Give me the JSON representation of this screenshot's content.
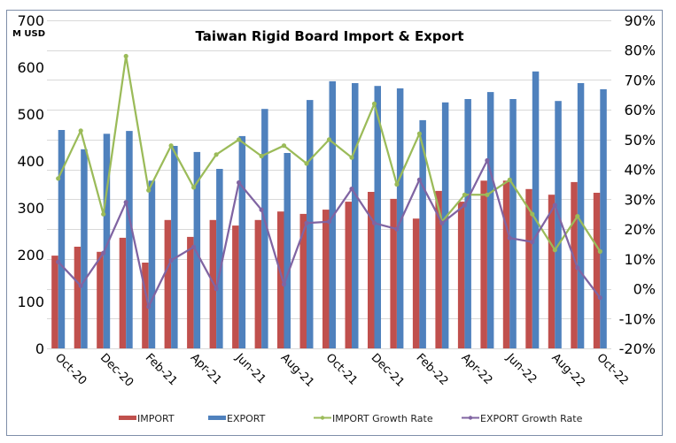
{
  "chart_data": {
    "type": "bar+line",
    "title": "Taiwan Rigid Board Import & Export",
    "ylabel_left": "M USD",
    "ylabel_right": "",
    "xlabel": "",
    "ylim_left": [
      0,
      700
    ],
    "ylim_right": [
      -0.2,
      0.9
    ],
    "yticks_left": [
      "0",
      "100",
      "200",
      "300",
      "400",
      "500",
      "600",
      "700"
    ],
    "yticks_right": [
      "-20%",
      "-10%",
      "0%",
      "10%",
      "20%",
      "30%",
      "40%",
      "50%",
      "60%",
      "70%",
      "80%",
      "90%"
    ],
    "grid": true,
    "legend_position": "bottom",
    "categories": [
      "Oct-20",
      "Nov-20",
      "Dec-20",
      "Jan-21",
      "Feb-21",
      "Mar-21",
      "Apr-21",
      "May-21",
      "Jun-21",
      "Jul-21",
      "Aug-21",
      "Sep-21",
      "Oct-21",
      "Nov-21",
      "Dec-21",
      "Jan-22",
      "Feb-22",
      "Mar-22",
      "Apr-22",
      "May-22",
      "Jun-22",
      "Jul-22",
      "Aug-22",
      "Sep-22",
      "Oct-22"
    ],
    "xtick_labels": [
      "Oct-20",
      "Dec-20",
      "Feb-21",
      "Apr-21",
      "Jun-21",
      "Aug-21",
      "Oct-21",
      "Dec-21",
      "Feb-22",
      "Apr-22",
      "Jun-22",
      "Aug-22",
      "Oct-22"
    ],
    "series": [
      {
        "name": "IMPORT",
        "type": "bar",
        "axis": "left",
        "color": "#c0504d",
        "values": [
          198,
          217,
          206,
          236,
          183,
          274,
          238,
          274,
          262,
          274,
          292,
          287,
          296,
          313,
          334,
          319,
          277,
          336,
          313,
          358,
          358,
          340,
          328,
          355,
          332
        ]
      },
      {
        "name": "EXPORT",
        "type": "bar",
        "axis": "left",
        "color": "#4f81bd",
        "values": [
          466,
          425,
          458,
          464,
          358,
          432,
          419,
          383,
          453,
          511,
          417,
          530,
          570,
          566,
          560,
          555,
          487,
          525,
          532,
          547,
          532,
          591,
          528,
          566,
          553
        ]
      },
      {
        "name": "IMPORT Growth Rate",
        "type": "line",
        "axis": "right",
        "color": "#9bbb59",
        "values": [
          0.37,
          0.53,
          0.25,
          0.78,
          0.33,
          0.48,
          0.34,
          0.45,
          0.5,
          0.445,
          0.48,
          0.42,
          0.5,
          0.44,
          0.62,
          0.35,
          0.52,
          0.225,
          0.315,
          0.315,
          0.365,
          0.25,
          0.13,
          0.243,
          0.125
        ]
      },
      {
        "name": "EXPORT Growth Rate",
        "type": "line",
        "axis": "right",
        "color": "#8064a2",
        "values": [
          0.09,
          0.01,
          0.12,
          0.29,
          -0.06,
          0.095,
          0.14,
          0.0,
          0.356,
          0.265,
          0.015,
          0.22,
          0.225,
          0.335,
          0.22,
          0.2,
          0.365,
          0.22,
          0.28,
          0.43,
          0.17,
          0.157,
          0.28,
          0.07,
          -0.03
        ]
      }
    ]
  },
  "legend": {
    "items": [
      "IMPORT",
      "EXPORT",
      "IMPORT Growth Rate",
      "EXPORT Growth Rate"
    ]
  }
}
